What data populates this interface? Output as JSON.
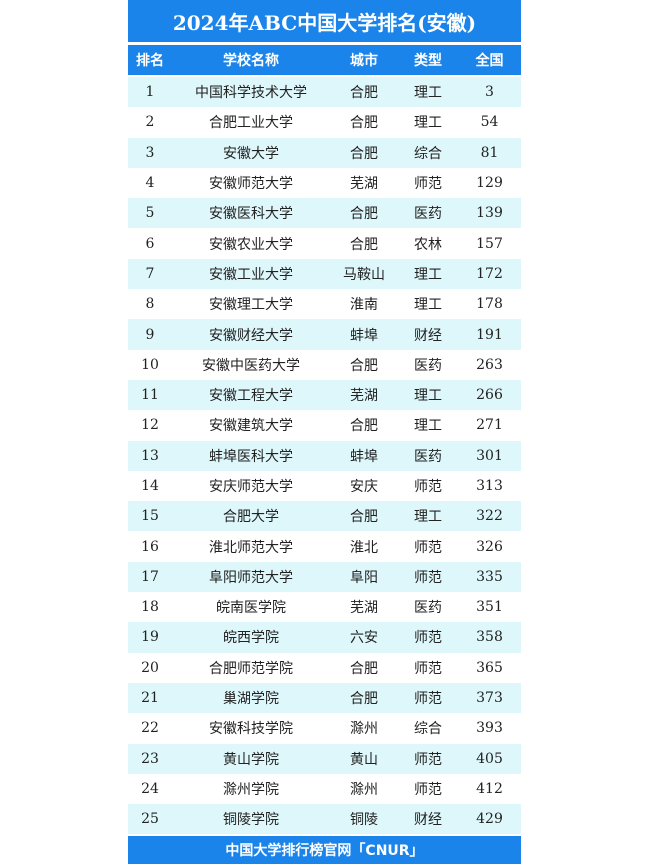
{
  "title": "2024年ABC中国大学排名(安徽)",
  "headers": [
    "排名",
    "学校名称",
    "城市",
    "类型",
    "全国"
  ],
  "rows": [
    [
      "1",
      "中国科学技术大学",
      "合肥",
      "理工",
      "3"
    ],
    [
      "2",
      "合肥工业大学",
      "合肥",
      "理工",
      "54"
    ],
    [
      "3",
      "安徽大学",
      "合肥",
      "综合",
      "81"
    ],
    [
      "4",
      "安徽师范大学",
      "芜湖",
      "师范",
      "129"
    ],
    [
      "5",
      "安徽医科大学",
      "合肥",
      "医药",
      "139"
    ],
    [
      "6",
      "安徽农业大学",
      "合肥",
      "农林",
      "157"
    ],
    [
      "7",
      "安徽工业大学",
      "马鞍山",
      "理工",
      "172"
    ],
    [
      "8",
      "安徽理工大学",
      "淮南",
      "理工",
      "178"
    ],
    [
      "9",
      "安徽财经大学",
      "蚌埠",
      "财经",
      "191"
    ],
    [
      "10",
      "安徽中医药大学",
      "合肥",
      "医药",
      "263"
    ],
    [
      "11",
      "安徽工程大学",
      "芜湖",
      "理工",
      "266"
    ],
    [
      "12",
      "安徽建筑大学",
      "合肥",
      "理工",
      "271"
    ],
    [
      "13",
      "蚌埠医科大学",
      "蚌埠",
      "医药",
      "301"
    ],
    [
      "14",
      "安庆师范大学",
      "安庆",
      "师范",
      "313"
    ],
    [
      "15",
      "合肥大学",
      "合肥",
      "理工",
      "322"
    ],
    [
      "16",
      "淮北师范大学",
      "淮北",
      "师范",
      "326"
    ],
    [
      "17",
      "阜阳师范大学",
      "阜阳",
      "师范",
      "335"
    ],
    [
      "18",
      "皖南医学院",
      "芜湖",
      "医药",
      "351"
    ],
    [
      "19",
      "皖西学院",
      "六安",
      "师范",
      "358"
    ],
    [
      "20",
      "合肥师范学院",
      "合肥",
      "师范",
      "365"
    ],
    [
      "21",
      "巢湖学院",
      "合肥",
      "师范",
      "373"
    ],
    [
      "22",
      "安徽科技学院",
      "滁州",
      "综合",
      "393"
    ],
    [
      "23",
      "黄山学院",
      "黄山",
      "师范",
      "405"
    ],
    [
      "24",
      "滁州学院",
      "滁州",
      "师范",
      "412"
    ],
    [
      "25",
      "铜陵学院",
      "铜陵",
      "财经",
      "429"
    ]
  ],
  "footer": "中国大学排行榜官网「CNUR」",
  "colors": {
    "header_blue": "#1a84ea",
    "stripe": "#def7fb"
  }
}
